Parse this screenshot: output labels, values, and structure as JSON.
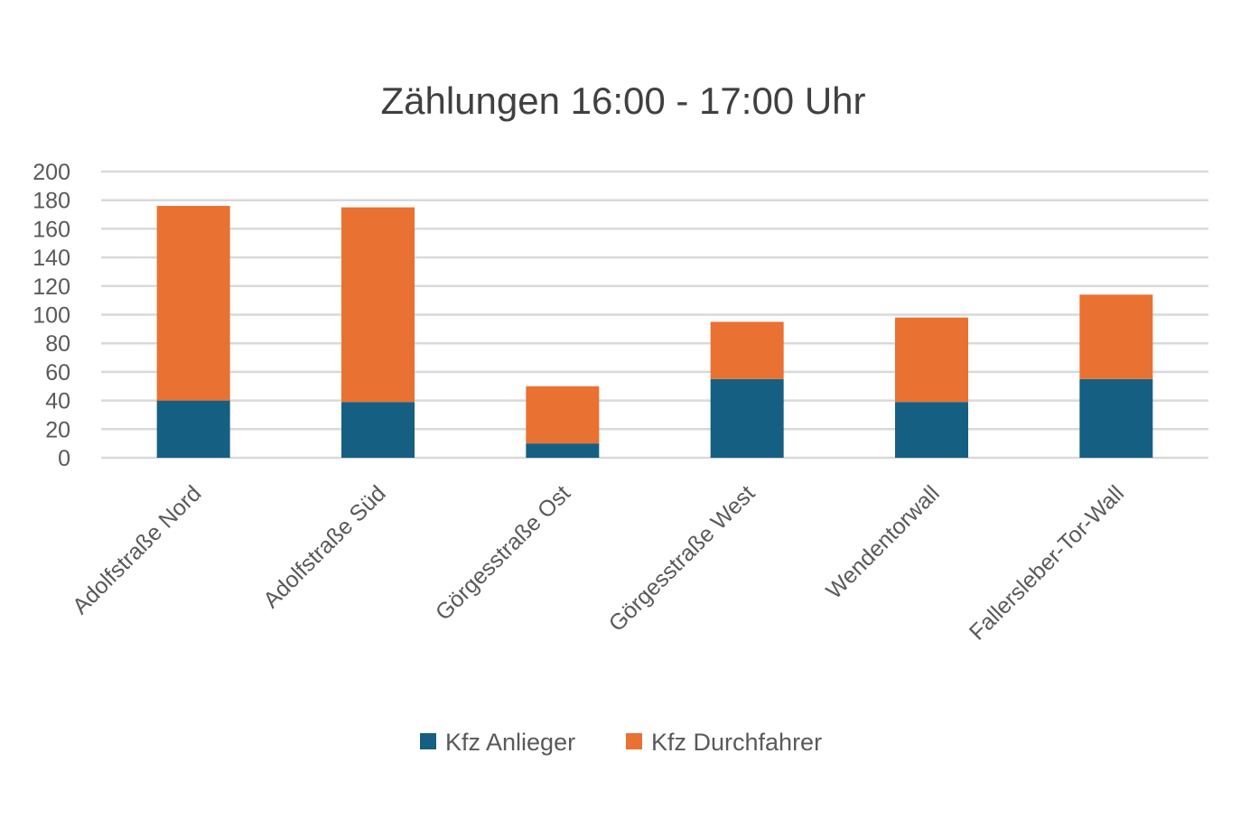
{
  "chart_data": {
    "type": "bar",
    "stacked": true,
    "title": "Zählungen 16:00 - 17:00 Uhr",
    "xlabel": "",
    "ylabel": "",
    "ylim": [
      0,
      200
    ],
    "yticks": [
      0,
      20,
      40,
      60,
      80,
      100,
      120,
      140,
      160,
      180,
      200
    ],
    "grid": true,
    "legend_position": "bottom",
    "categories": [
      "Adolfstraße Nord",
      "Adolfstraße Süd",
      "Görgesstraße Ost",
      "Görgesstraße West",
      "Wendentorwall",
      "Fallersleber-Tor-Wall"
    ],
    "series": [
      {
        "name": "Kfz Anlieger",
        "color": "#156082",
        "values": [
          40,
          39,
          10,
          55,
          39,
          55
        ]
      },
      {
        "name": "Kfz Durchfahrer",
        "color": "#E97132",
        "values": [
          136,
          136,
          40,
          40,
          59,
          59
        ]
      }
    ]
  }
}
